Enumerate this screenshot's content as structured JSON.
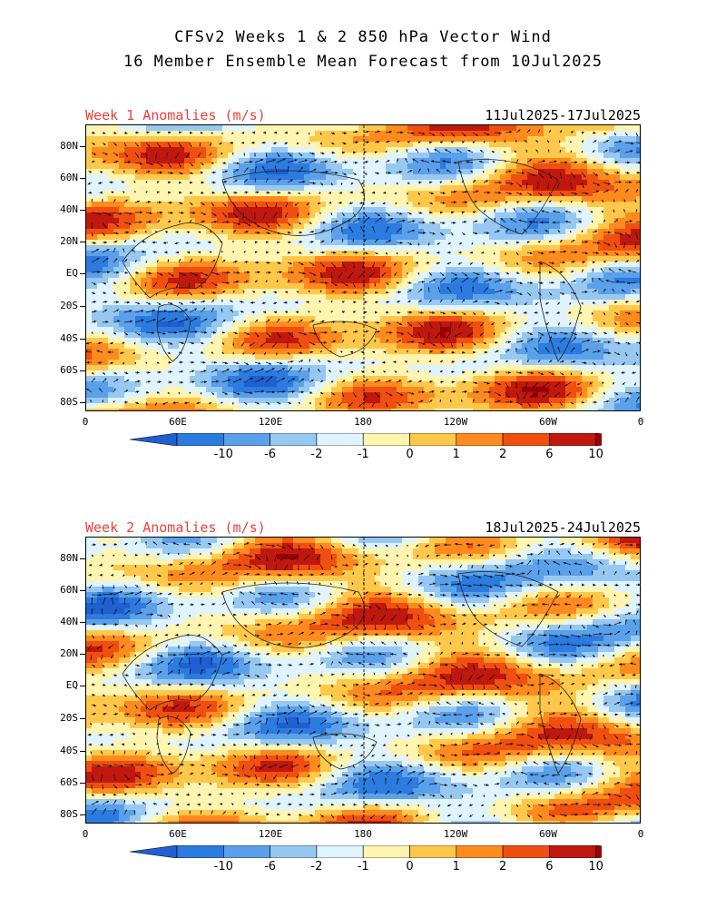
{
  "title_line1": "CFSv2 Weeks 1 & 2 850 hPa Vector Wind",
  "title_line2": "16 Member Ensemble Mean Forecast from 10Jul2025",
  "panels": [
    {
      "label": "Week 1 Anomalies (m/s)",
      "dates": "11Jul2025-17Jul2025"
    },
    {
      "label": "Week 2 Anomalies (m/s)",
      "dates": "18Jul2025-24Jul2025"
    }
  ],
  "lat_labels": [
    "80N",
    "60N",
    "40N",
    "20N",
    "EQ",
    "20S",
    "40S",
    "60S",
    "80S"
  ],
  "lon_labels": [
    "0",
    "60E",
    "120E",
    "180",
    "120W",
    "60W",
    "0"
  ],
  "colorbar": {
    "labels": [
      "-10",
      "-6",
      "-2",
      "-1",
      "0",
      "1",
      "2",
      "6",
      "10"
    ],
    "colors": [
      "#1f5fd0",
      "#2b7be0",
      "#5aa0ea",
      "#96c8f2",
      "#dff4ff",
      "#fff4b0",
      "#ffc84a",
      "#ff8a1e",
      "#f04f10",
      "#c0180e",
      "#9c0000"
    ]
  },
  "colors": {
    "title_red": "#e8413a"
  }
}
